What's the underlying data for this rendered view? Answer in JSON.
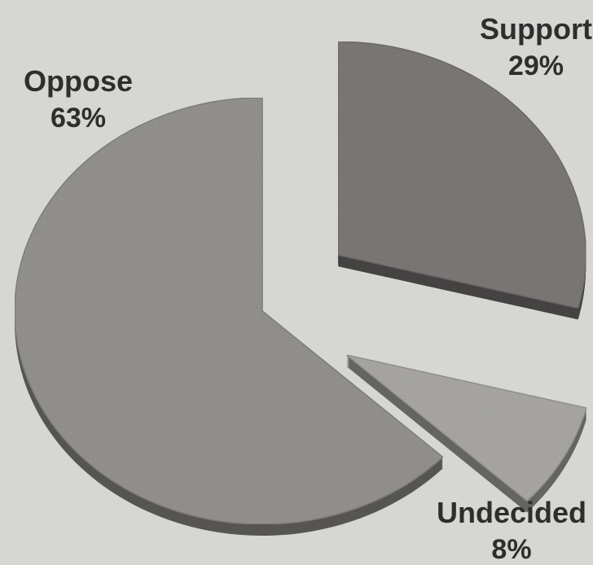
{
  "chart_data": {
    "type": "pie",
    "title": "",
    "slices": [
      {
        "label": "Support",
        "value": 29,
        "value_label": "29%",
        "color": "#6f6c6b",
        "exploded": true
      },
      {
        "label": "Undecided",
        "value": 8,
        "value_label": "8%",
        "color": "#a3a19d",
        "exploded": true
      },
      {
        "label": "Oppose",
        "value": 63,
        "value_label": "63%",
        "color": "#8b8985",
        "exploded": false
      }
    ],
    "style": {
      "three_d": true,
      "background": "#d6d6d2",
      "edge_color": "#4a4644"
    }
  }
}
